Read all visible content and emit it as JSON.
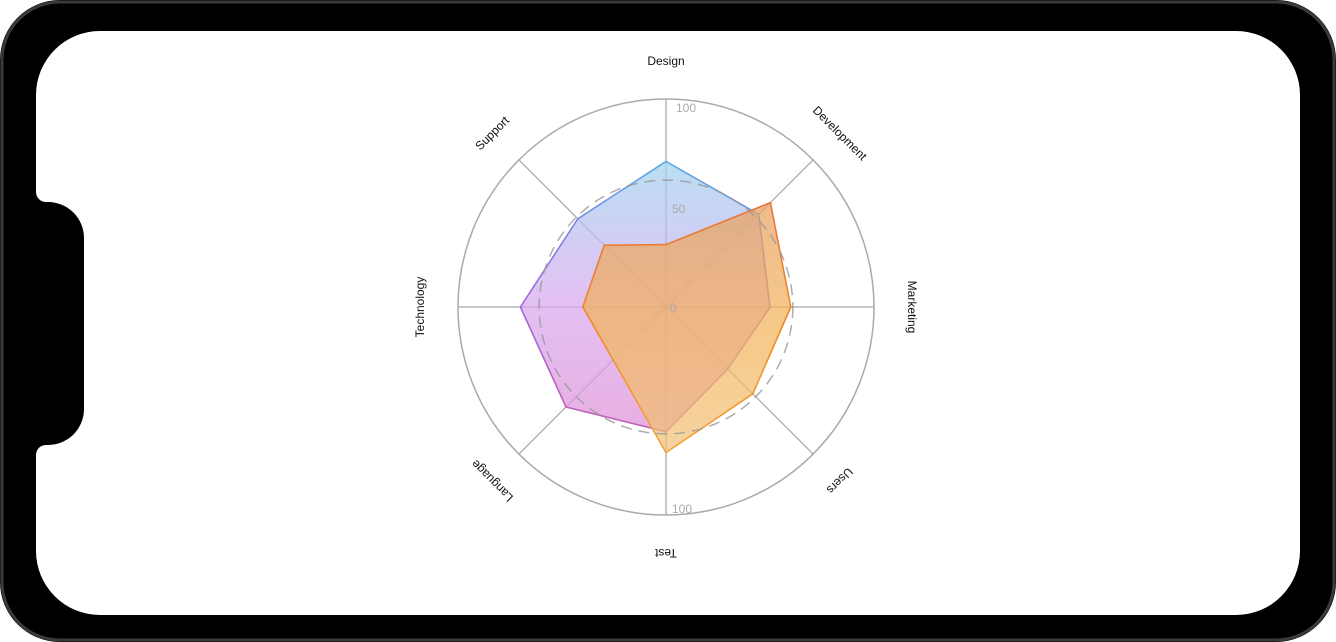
{
  "device": {
    "frame_color": "#000000",
    "screen_color": "#ffffff"
  },
  "chart_data": {
    "type": "radar",
    "categories": [
      "Design",
      "Development",
      "Marketing",
      "Users",
      "Test",
      "Language",
      "Technology",
      "Support"
    ],
    "rlim": [
      0,
      100
    ],
    "radial_tick_labels": [
      "100",
      "50",
      "0",
      "100"
    ],
    "reference_ring_value": 61,
    "grid": true,
    "series": [
      {
        "values": [
          70,
          63,
          50,
          42,
          60,
          68,
          70,
          60
        ],
        "fill_gradient": [
          "#9fd3ee",
          "#d7a9f0",
          "#e08fd6"
        ],
        "stroke_gradient": [
          "#5aa9e6",
          "#9b6ae0",
          "#c35fb5"
        ]
      },
      {
        "values": [
          30,
          71,
          60,
          59,
          70,
          36,
          40,
          42
        ],
        "fill_gradient": [
          "#e8a060",
          "#f2b45a",
          "#f2c27a"
        ],
        "stroke_gradient": [
          "#e8743a",
          "#f08a24",
          "#f2a43a"
        ]
      }
    ],
    "colors": {
      "grid": "#aaaaaa",
      "tick_label": "#aaaaaa",
      "category_label": "#111111",
      "reference_ring": "#999999"
    }
  }
}
